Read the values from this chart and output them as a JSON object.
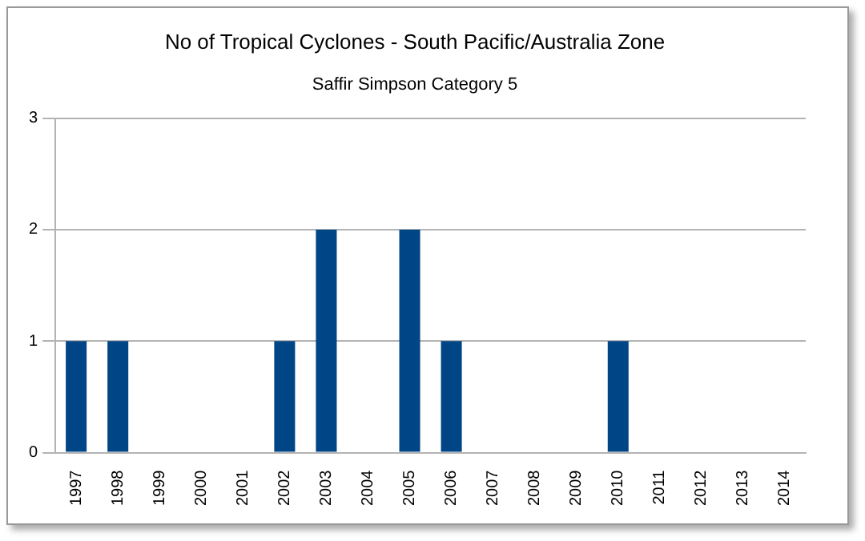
{
  "chart_data": {
    "type": "bar",
    "title": "No of Tropical Cyclones - South Pacific/Australia Zone",
    "subtitle": "Saffir Simpson Category 5",
    "categories": [
      "1997",
      "1998",
      "1999",
      "2000",
      "2001",
      "2002",
      "2003",
      "2004",
      "2005",
      "2006",
      "2007",
      "2008",
      "2009",
      "2010",
      "2011",
      "2012",
      "2013",
      "2014"
    ],
    "values": [
      1,
      1,
      0,
      0,
      0,
      1,
      2,
      0,
      2,
      1,
      0,
      0,
      0,
      1,
      0,
      0,
      0,
      0
    ],
    "color": "#004586",
    "ylim": [
      0,
      3
    ],
    "yticks": [
      0,
      1,
      2,
      3
    ],
    "grid": "y",
    "legend": false
  }
}
